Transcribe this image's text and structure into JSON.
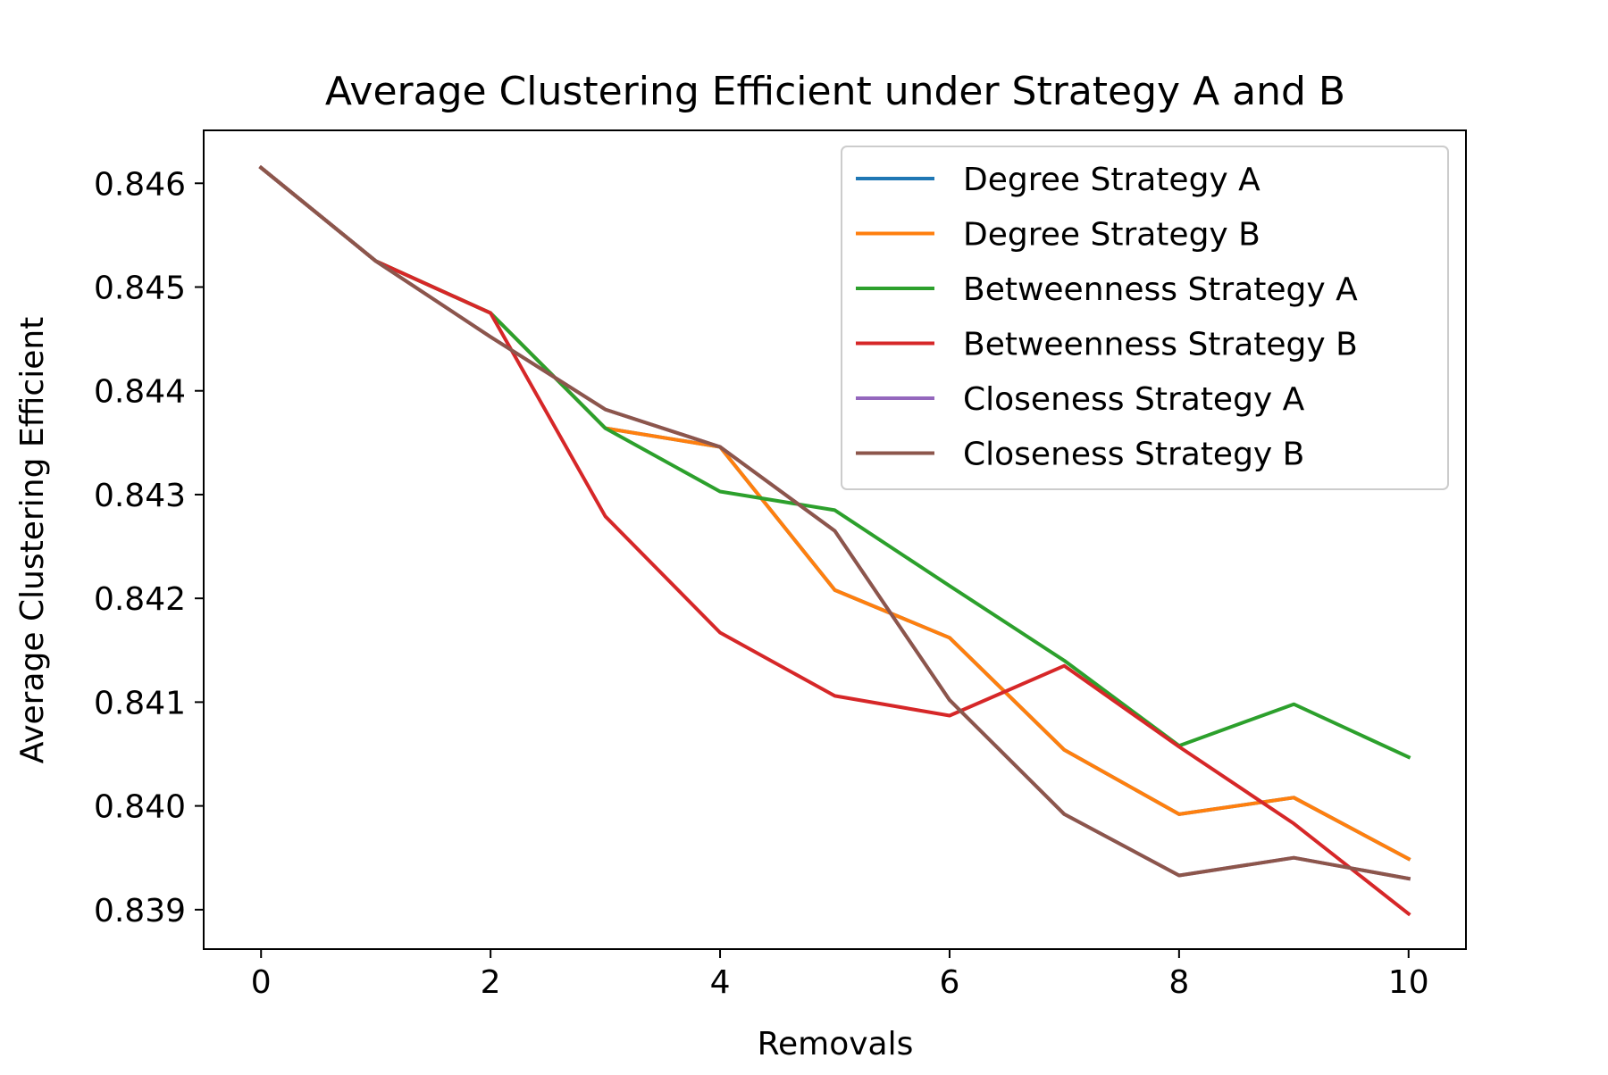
{
  "chart_data": {
    "type": "line",
    "title": "Average Clustering Efficient under Strategy A and B",
    "xlabel": "Removals",
    "ylabel": "Average Clustering Efficient",
    "xlim": [
      -0.5,
      10.5
    ],
    "ylim": [
      0.83862,
      0.84651
    ],
    "xticks": [
      0,
      2,
      4,
      6,
      8,
      10
    ],
    "xtick_labels": [
      "0",
      "2",
      "4",
      "6",
      "8",
      "10"
    ],
    "yticks": [
      0.839,
      0.84,
      0.841,
      0.842,
      0.843,
      0.844,
      0.845,
      0.846
    ],
    "ytick_labels": [
      "0.839",
      "0.840",
      "0.841",
      "0.842",
      "0.843",
      "0.844",
      "0.845",
      "0.846"
    ],
    "grid": false,
    "legend_position": "top-right",
    "x": [
      0,
      1,
      2,
      3,
      4,
      5,
      6,
      7,
      8,
      9,
      10
    ],
    "series": [
      {
        "name": "Degree Strategy A",
        "color": "#1f77b4",
        "values": [
          0.84615,
          0.84525,
          0.84475,
          0.84364,
          0.84346,
          0.84208,
          0.84162,
          0.84054,
          0.83992,
          0.84008,
          0.83949
        ]
      },
      {
        "name": "Degree Strategy B",
        "color": "#ff7f0e",
        "values": [
          0.84615,
          0.84525,
          0.84475,
          0.84364,
          0.84346,
          0.84208,
          0.84162,
          0.84054,
          0.83992,
          0.84008,
          0.83949
        ]
      },
      {
        "name": "Betweenness Strategy A",
        "color": "#2ca02c",
        "values": [
          0.84615,
          0.84525,
          0.84475,
          0.84364,
          0.84303,
          0.84285,
          0.84212,
          0.8414,
          0.84058,
          0.84098,
          0.84047
        ]
      },
      {
        "name": "Betweenness Strategy B",
        "color": "#d62728",
        "values": [
          0.84615,
          0.84525,
          0.84475,
          0.84279,
          0.84167,
          0.84106,
          0.84087,
          0.84135,
          0.84057,
          0.83983,
          0.83896
        ]
      },
      {
        "name": "Closeness Strategy A",
        "color": "#9467bd",
        "values": [
          0.84615,
          0.84525,
          0.84452,
          0.84382,
          0.84346,
          0.84265,
          0.84102,
          0.83992,
          0.83933,
          0.8395,
          0.8393
        ]
      },
      {
        "name": "Closeness Strategy B",
        "color": "#8c564b",
        "values": [
          0.84615,
          0.84525,
          0.84452,
          0.84382,
          0.84346,
          0.84265,
          0.84102,
          0.83992,
          0.83933,
          0.8395,
          0.8393
        ]
      }
    ]
  }
}
